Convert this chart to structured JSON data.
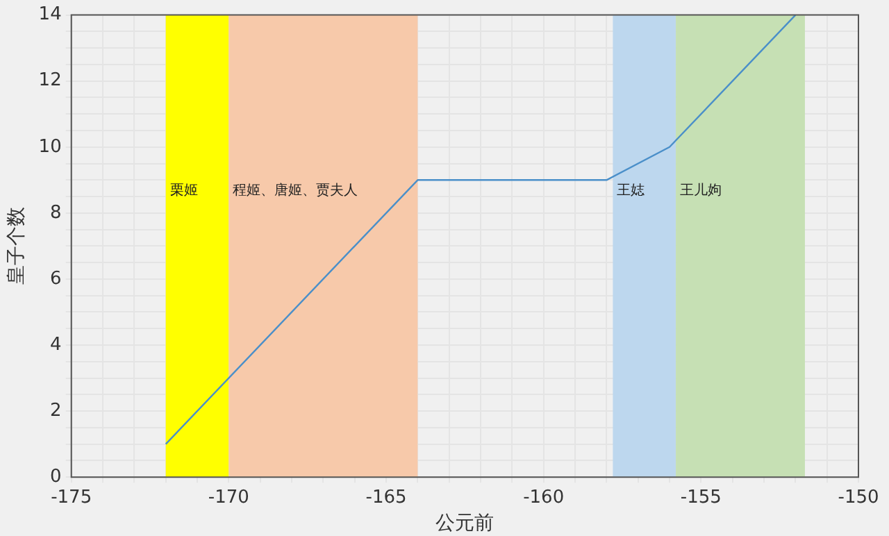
{
  "chart_data": {
    "type": "line",
    "xlabel": "公元前",
    "ylabel": "皇子个数",
    "x": [
      -172,
      -164,
      -158,
      -156,
      -152
    ],
    "series": [
      {
        "color": "#4a8fc9",
        "values": [
          1,
          9,
          9,
          10,
          14
        ]
      }
    ],
    "xlim": [
      -175,
      -150
    ],
    "xticks": [
      -175,
      {
        "value": -174,
        "label": null
      },
      {
        "value": -173,
        "label": null
      },
      {
        "value": -172,
        "label": null
      },
      {
        "value": -171,
        "label": null
      },
      -170,
      {
        "value": -169,
        "label": null
      },
      {
        "value": -168,
        "label": null
      },
      {
        "value": -167,
        "label": null
      },
      {
        "value": -166,
        "label": null
      },
      -165,
      {
        "value": -164,
        "label": null
      },
      {
        "value": -163,
        "label": null
      },
      {
        "value": -162,
        "label": null
      },
      {
        "value": -161,
        "label": null
      },
      -160,
      {
        "value": -159,
        "label": null
      },
      {
        "value": -158,
        "label": null
      },
      {
        "value": -157,
        "label": null
      },
      {
        "value": -156,
        "label": null
      },
      -155,
      {
        "value": -154,
        "label": null
      },
      {
        "value": -153,
        "label": null
      },
      {
        "value": -152,
        "label": null
      },
      {
        "value": -151,
        "label": null
      },
      -150
    ],
    "ylim": [
      0,
      14
    ],
    "yticks": [
      0,
      {
        "value": 0.5,
        "label": null
      },
      {
        "value": 1,
        "label": null
      },
      {
        "value": 1.5,
        "label": null
      },
      2,
      {
        "value": 2.5,
        "label": null
      },
      {
        "value": 3,
        "label": null
      },
      {
        "value": 3.5,
        "label": null
      },
      4,
      {
        "value": 4.5,
        "label": null
      },
      {
        "value": 5,
        "label": null
      },
      {
        "value": 5.5,
        "label": null
      },
      6,
      {
        "value": 6.5,
        "label": null
      },
      {
        "value": 7,
        "label": null
      },
      {
        "value": 7.5,
        "label": null
      },
      8,
      {
        "value": 8.5,
        "label": null
      },
      {
        "value": 9,
        "label": null
      },
      {
        "value": 9.5,
        "label": null
      },
      10,
      {
        "value": 10.5,
        "label": null
      },
      {
        "value": 11,
        "label": null
      },
      {
        "value": 11.5,
        "label": null
      },
      12,
      {
        "value": 12.5,
        "label": null
      },
      {
        "value": 13,
        "label": null
      },
      {
        "value": 13.5,
        "label": null
      },
      14
    ],
    "bands": [
      {
        "axis": "x",
        "from": -172,
        "to": -170,
        "label": "栗姬",
        "color": "#ffff00"
      },
      {
        "axis": "x",
        "from": -170,
        "to": -164,
        "label": "程姬、唐姬、贾夫人",
        "color": "#f7c9aa"
      },
      {
        "axis": "x",
        "from": -157.8,
        "to": -155.8,
        "label": "王娡",
        "color": "#bdd7ee"
      },
      {
        "axis": "x",
        "from": -155.8,
        "to": -151.7,
        "label": "王儿姁",
        "color": "#c6e0b4"
      }
    ],
    "grid": true,
    "legend": false,
    "marker": "none",
    "line_style": "solid"
  }
}
